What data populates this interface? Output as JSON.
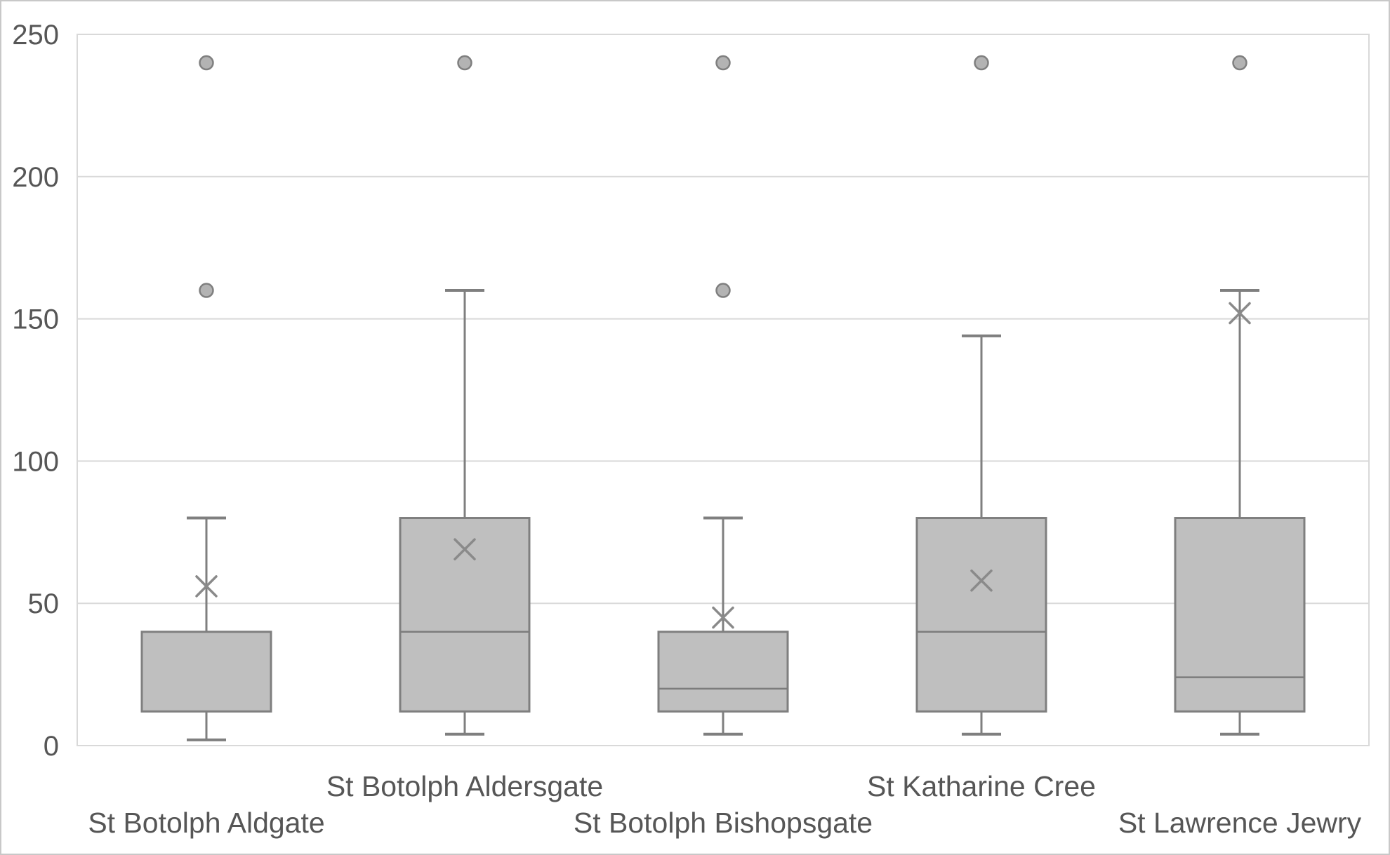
{
  "figure": {
    "background": "#ffffff",
    "border_color": "#c8c8c8"
  },
  "chart_data": {
    "type": "boxplot",
    "title": "",
    "xlabel": "",
    "ylabel": "",
    "legend": false,
    "grid": true,
    "y_axis": {
      "min": 0,
      "max": 250,
      "tick_interval": 50,
      "tick_labels": [
        "0",
        "50",
        "100",
        "150",
        "200",
        "250"
      ]
    },
    "categories": [
      "St Botolph Aldgate",
      "St Botolph Aldersgate",
      "St Botolph Bishopsgate",
      "St Katharine Cree",
      "St Lawrence Jewry"
    ],
    "label_row": [
      "lower",
      "upper",
      "lower",
      "upper",
      "lower"
    ],
    "series": [
      {
        "name": "St Botolph Aldgate",
        "whisker_min": 2,
        "q1": 12,
        "median": null,
        "q3": 40,
        "whisker_max": 80,
        "mean": 56,
        "outliers": [
          160,
          240
        ]
      },
      {
        "name": "St Botolph Aldersgate",
        "whisker_min": 4,
        "q1": 12,
        "median": 40,
        "q3": 80,
        "whisker_max": 160,
        "mean": 69,
        "outliers": [
          240
        ]
      },
      {
        "name": "St Botolph Bishopsgate",
        "whisker_min": 4,
        "q1": 12,
        "median": 20,
        "q3": 40,
        "whisker_max": 80,
        "mean": 45,
        "outliers": [
          160,
          240
        ]
      },
      {
        "name": "St Katharine Cree",
        "whisker_min": 4,
        "q1": 12,
        "median": 40,
        "q3": 80,
        "whisker_max": 144,
        "mean": 58,
        "outliers": [
          240
        ]
      },
      {
        "name": "St Lawrence Jewry",
        "whisker_min": 4,
        "q1": 12,
        "median": 24,
        "q3": 80,
        "whisker_max": 160,
        "mean": 152,
        "outliers": [
          240
        ]
      }
    ],
    "colors": {
      "box_fill": "#bfbfbf",
      "box_stroke": "#7f7f7f",
      "whisker_stroke": "#7f7f7f",
      "median_stroke": "#7c7c7c",
      "mean_stroke": "#8a8a8a",
      "outlier_fill": "#b3b3b3",
      "outlier_stroke": "#7f7f7f",
      "gridline": "#d9d9d9",
      "plot_border": "#d9d9d9",
      "tick_text": "#565656"
    }
  }
}
